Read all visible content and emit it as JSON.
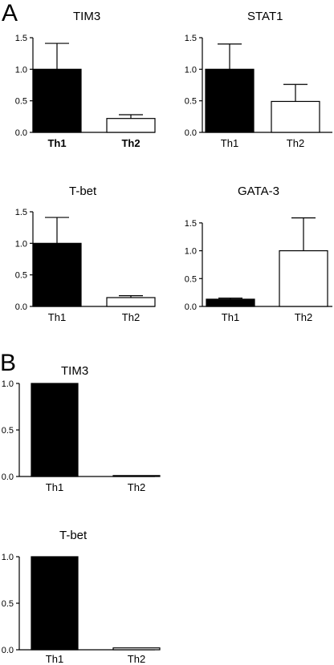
{
  "panel_letters": [
    "A",
    "B"
  ],
  "chart_data": [
    {
      "type": "bar",
      "panel": "A",
      "title": "TIM3",
      "categories": [
        "Th1",
        "Th2"
      ],
      "values": [
        1.0,
        0.22
      ],
      "errors": [
        0.41,
        0.06
      ],
      "fills": [
        "#000000",
        "#ffffff"
      ],
      "ylim": [
        0,
        1.5
      ],
      "yticks": [
        0,
        0.5,
        1.0,
        1.5
      ],
      "ytick_labels": [
        "0.0",
        "0.5",
        "1.0",
        "1.5"
      ],
      "bold_category_labels": true
    },
    {
      "type": "bar",
      "panel": "A",
      "title": "STAT1",
      "categories": [
        "Th1",
        "Th2"
      ],
      "values": [
        1.0,
        0.49
      ],
      "errors": [
        0.4,
        0.27
      ],
      "fills": [
        "#000000",
        "#ffffff"
      ],
      "ylim": [
        0,
        1.5
      ],
      "yticks": [
        0,
        0.5,
        1.0,
        1.5
      ],
      "ytick_labels": [
        "0.0",
        "0.5",
        "1.0",
        "1.5"
      ]
    },
    {
      "type": "bar",
      "panel": "A",
      "title": "T-bet",
      "categories": [
        "Th1",
        "Th2"
      ],
      "values": [
        1.0,
        0.14
      ],
      "errors": [
        0.41,
        0.03
      ],
      "fills": [
        "#000000",
        "#ffffff"
      ],
      "ylim": [
        0,
        1.5
      ],
      "yticks": [
        0,
        0.5,
        1.0,
        1.5
      ],
      "ytick_labels": [
        "0.0",
        "0.5",
        "1.0",
        "1.5"
      ]
    },
    {
      "type": "bar",
      "panel": "A",
      "title": "GATA-3",
      "categories": [
        "Th1",
        "Th2"
      ],
      "values": [
        0.13,
        1.0
      ],
      "errors": [
        0.02,
        0.59
      ],
      "fills": [
        "#000000",
        "#ffffff"
      ],
      "ylim": [
        0,
        1.7
      ],
      "yticks": [
        0,
        0.5,
        1.0,
        1.5
      ],
      "ytick_labels": [
        "0.0",
        "0.5",
        "1.0",
        "1.5"
      ]
    },
    {
      "type": "bar",
      "panel": "B",
      "title": "TIM3",
      "categories": [
        "Th1",
        "Th2"
      ],
      "values": [
        1.0,
        0.01
      ],
      "errors": [
        0,
        0
      ],
      "fills": [
        "#000000",
        "#ffffff"
      ],
      "ylim": [
        0,
        1.0
      ],
      "yticks": [
        0,
        0.5,
        1.0
      ],
      "ytick_labels": [
        "0.0",
        "0.5",
        "1.0"
      ]
    },
    {
      "type": "bar",
      "panel": "B",
      "title": "T-bet",
      "categories": [
        "Th1",
        "Th2"
      ],
      "values": [
        1.0,
        0.02
      ],
      "errors": [
        0,
        0
      ],
      "fills": [
        "#000000",
        "#ffffff"
      ],
      "ylim": [
        0,
        1.0
      ],
      "yticks": [
        0,
        0.5,
        1.0
      ],
      "ytick_labels": [
        "0.0",
        "0.5",
        "1.0"
      ]
    }
  ]
}
